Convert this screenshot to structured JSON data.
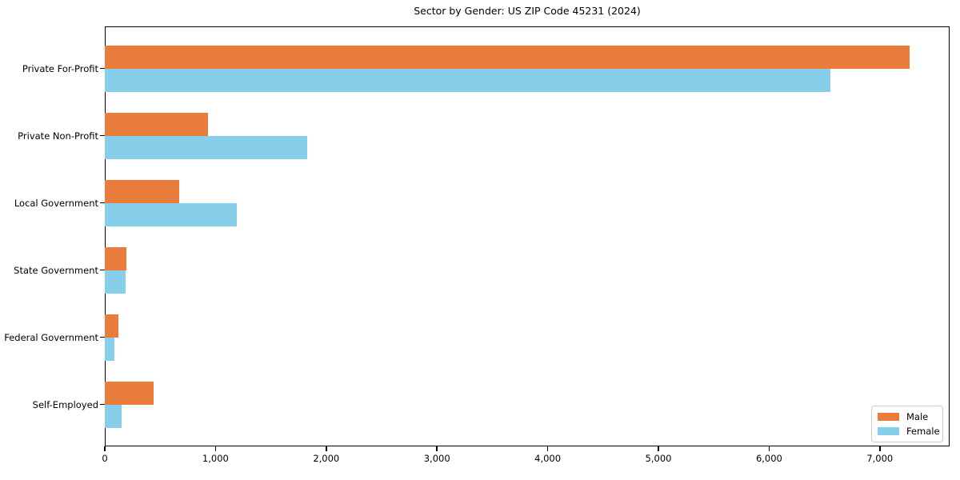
{
  "title": "Sector by Gender: US ZIP Code 45231 (2024)",
  "chart_data": {
    "type": "bar",
    "orientation": "horizontal",
    "title": "Sector by Gender: US ZIP Code 45231 (2024)",
    "categories": [
      "Private For-Profit",
      "Private Non-Profit",
      "Local Government",
      "State Government",
      "Federal Government",
      "Self-Employed"
    ],
    "series": [
      {
        "name": "Male",
        "color": "#E97C3B",
        "values": [
          7270,
          935,
          675,
          195,
          125,
          440
        ]
      },
      {
        "name": "Female",
        "color": "#87CEEB",
        "values": [
          6550,
          1830,
          1190,
          185,
          85,
          155
        ]
      }
    ],
    "xlabel": "",
    "ylabel": "",
    "xlim": [
      0,
      7630
    ],
    "xticks": [
      0,
      1000,
      2000,
      3000,
      4000,
      5000,
      6000,
      7000
    ],
    "xtick_labels": [
      "0",
      "1,000",
      "2,000",
      "3,000",
      "4,000",
      "5,000",
      "6,000",
      "7,000"
    ],
    "grid": false,
    "legend_position": "lower right",
    "axis_color": "#000000",
    "background_color": "#ffffff"
  }
}
